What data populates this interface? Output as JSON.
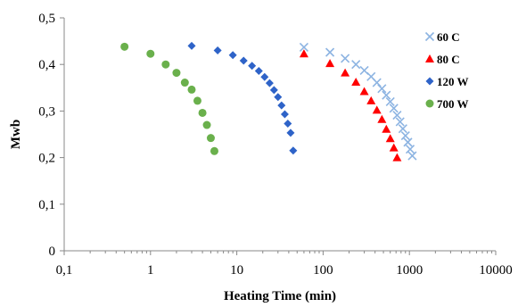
{
  "chart_data": {
    "type": "scatter",
    "title": "",
    "xlabel": "Heating Time (min)",
    "ylabel": "Mwb",
    "x_scale": "log",
    "xlim": [
      0.1,
      10000
    ],
    "ylim": [
      0,
      0.5
    ],
    "x_ticks": [
      0.1,
      1,
      10,
      100,
      1000,
      10000
    ],
    "x_tick_labels": [
      "0,1",
      "1",
      "10",
      "100",
      "1000",
      "10000"
    ],
    "y_ticks": [
      0,
      0.1,
      0.2,
      0.3,
      0.4,
      0.5
    ],
    "y_tick_labels": [
      "0",
      "0,1",
      "0,2",
      "0,3",
      "0,4",
      "0,5"
    ],
    "grid": false,
    "legend_position": "top-right",
    "series": [
      {
        "name": "60 C",
        "marker": "x",
        "color": "#8db4e2",
        "x": [
          60,
          120,
          180,
          240,
          300,
          360,
          420,
          480,
          540,
          600,
          660,
          720,
          780,
          840,
          900,
          960,
          1020,
          1080
        ],
        "y": [
          0.437,
          0.426,
          0.413,
          0.4,
          0.387,
          0.374,
          0.361,
          0.348,
          0.334,
          0.32,
          0.306,
          0.291,
          0.277,
          0.262,
          0.247,
          0.233,
          0.218,
          0.204
        ]
      },
      {
        "name": "80 C",
        "marker": "triangle",
        "color": "#ff0000",
        "x": [
          60,
          120,
          180,
          240,
          300,
          360,
          420,
          480,
          540,
          600,
          660,
          720
        ],
        "y": [
          0.423,
          0.402,
          0.382,
          0.362,
          0.342,
          0.322,
          0.302,
          0.282,
          0.261,
          0.241,
          0.221,
          0.2
        ]
      },
      {
        "name": "120 W",
        "marker": "diamond",
        "color": "#2e63c8",
        "x": [
          3,
          6,
          9,
          12,
          15,
          18,
          21,
          24,
          27,
          30,
          33,
          36,
          39,
          42,
          45
        ],
        "y": [
          0.44,
          0.43,
          0.42,
          0.408,
          0.397,
          0.386,
          0.373,
          0.36,
          0.345,
          0.33,
          0.312,
          0.293,
          0.273,
          0.253,
          0.215
        ]
      },
      {
        "name": "700 W",
        "marker": "circle",
        "color": "#6ab04c",
        "x": [
          0.5,
          1,
          1.5,
          2,
          2.5,
          3,
          3.5,
          4,
          4.5,
          5,
          5.5
        ],
        "y": [
          0.438,
          0.423,
          0.4,
          0.382,
          0.361,
          0.346,
          0.322,
          0.296,
          0.27,
          0.242,
          0.214
        ]
      }
    ]
  }
}
